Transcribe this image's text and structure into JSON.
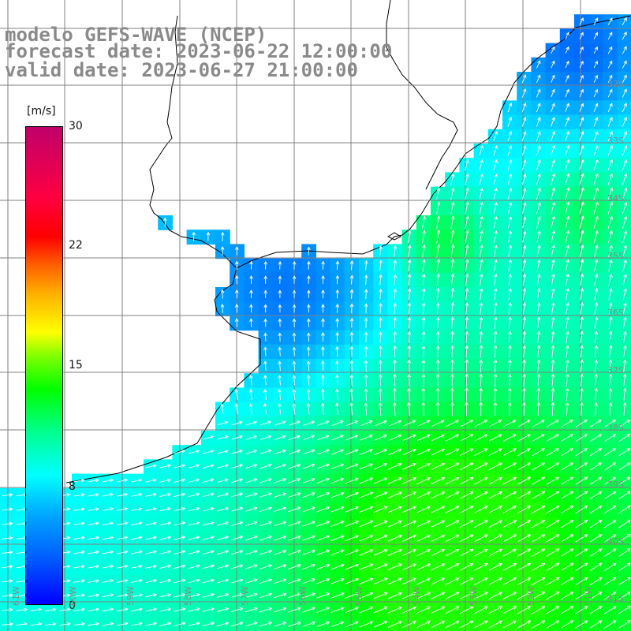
{
  "title": {
    "line1": "modelo GEFS-WAVE (NCEP)",
    "line2": "forecast date: 2023-06-22 12:00:00",
    "line3": "valid date: 2023-06-27 21:00:00"
  },
  "colorbar": {
    "unit": "[m/s]",
    "ticks": [
      "30",
      "22",
      "15",
      "8",
      "0"
    ],
    "values": [
      30,
      22,
      15,
      8,
      0
    ],
    "min": 0,
    "max": 30
  },
  "axes": {
    "lat_labels": [
      "32S",
      "33S",
      "34S",
      "35S",
      "36S",
      "37S",
      "38S",
      "39S",
      "40S",
      "41S"
    ],
    "lon_labels": [
      "61W",
      "60W",
      "59W",
      "58W",
      "57W",
      "56W",
      "55W",
      "54W",
      "53W",
      "52W",
      "51W"
    ]
  },
  "colors": {
    "land": "#ffffff",
    "coast": "#000000",
    "grid": "#808080",
    "arrows": "#ffffff",
    "title_text": "#8a8a8a"
  }
}
